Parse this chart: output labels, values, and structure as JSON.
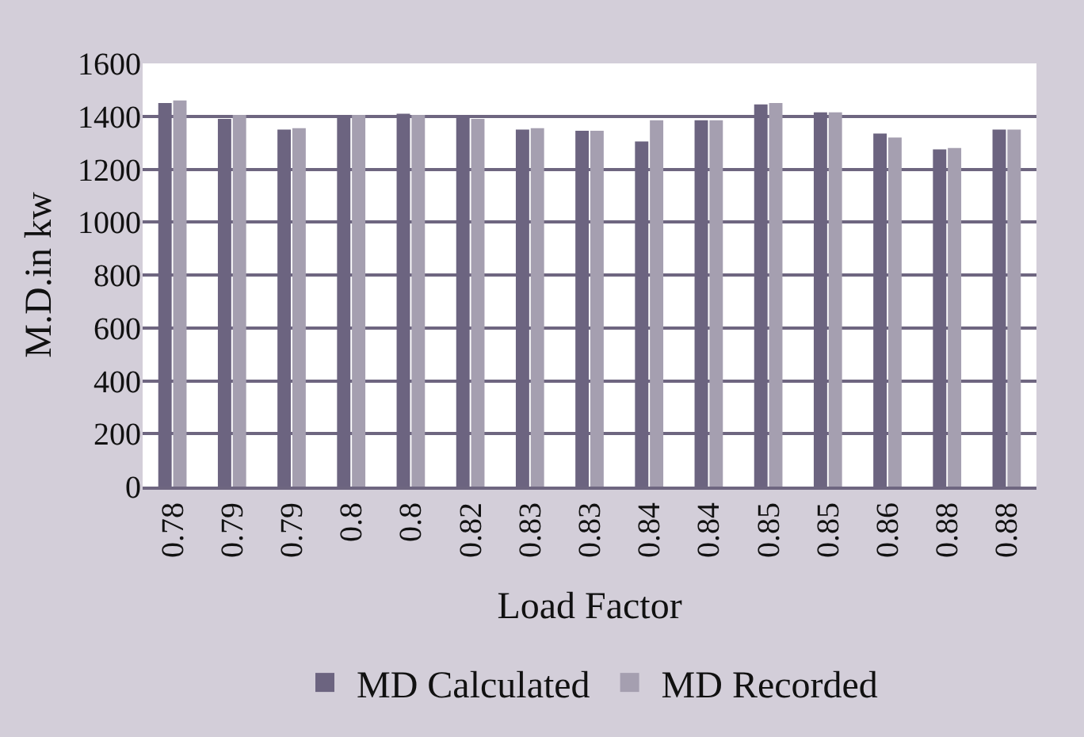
{
  "chart_data": {
    "type": "bar",
    "xlabel": "Load Factor",
    "ylabel": "M.D.in kw",
    "categories": [
      "0.78",
      "0.79",
      "0.79",
      "0.8",
      "0.8",
      "0.82",
      "0.83",
      "0.83",
      "0.84",
      "0.84",
      "0.85",
      "0.85",
      "0.86",
      "0.88",
      "0.88"
    ],
    "series": [
      {
        "name": "MD Calculated",
        "color": "#6c6480",
        "values": [
          1450,
          1390,
          1350,
          1405,
          1410,
          1405,
          1350,
          1345,
          1305,
          1385,
          1445,
          1415,
          1335,
          1275,
          1350
        ]
      },
      {
        "name": "MD Recorded",
        "color": "#a59fb0",
        "values": [
          1460,
          1405,
          1355,
          1405,
          1405,
          1390,
          1355,
          1345,
          1385,
          1385,
          1450,
          1415,
          1320,
          1280,
          1350
        ]
      }
    ],
    "ylim": [
      0,
      1600
    ],
    "yticks": [
      0,
      200,
      400,
      600,
      800,
      1000,
      1200,
      1400,
      1600
    ],
    "grid": "y",
    "legend": "bottom"
  }
}
